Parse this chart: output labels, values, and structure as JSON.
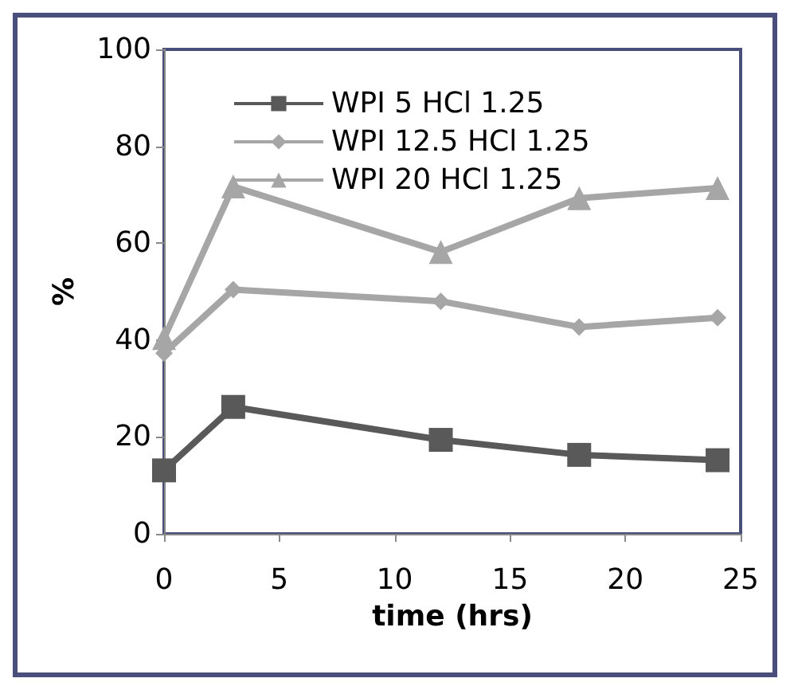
{
  "chart_data": {
    "type": "line",
    "xlabel": "time (hrs)",
    "ylabel": "%",
    "x": [
      0,
      3,
      12,
      18,
      24
    ],
    "xlim": [
      0,
      25
    ],
    "xticks": [
      0,
      5,
      10,
      15,
      20,
      25
    ],
    "ylim": [
      0,
      100
    ],
    "yticks": [
      0,
      20,
      40,
      60,
      80,
      100
    ],
    "grid": false,
    "legend": "top left",
    "line_style": "solid",
    "series": [
      {
        "name": "WPI 5 HCl 1.25",
        "color": "#595959",
        "marker": "square",
        "values": [
          13.1,
          26.2,
          19.4,
          16.3,
          15.2
        ]
      },
      {
        "name": "WPI 12.5 HCl 1.25",
        "color": "#a6a6a6",
        "marker": "diamond",
        "values": [
          37.3,
          50.4,
          48,
          42.7,
          44.6
        ]
      },
      {
        "name": "WPI 20 HCl 1.25",
        "color": "#a6a6a6",
        "marker": "triangle",
        "values": [
          40.4,
          71.7,
          58.2,
          69.3,
          71.4
        ]
      }
    ]
  }
}
